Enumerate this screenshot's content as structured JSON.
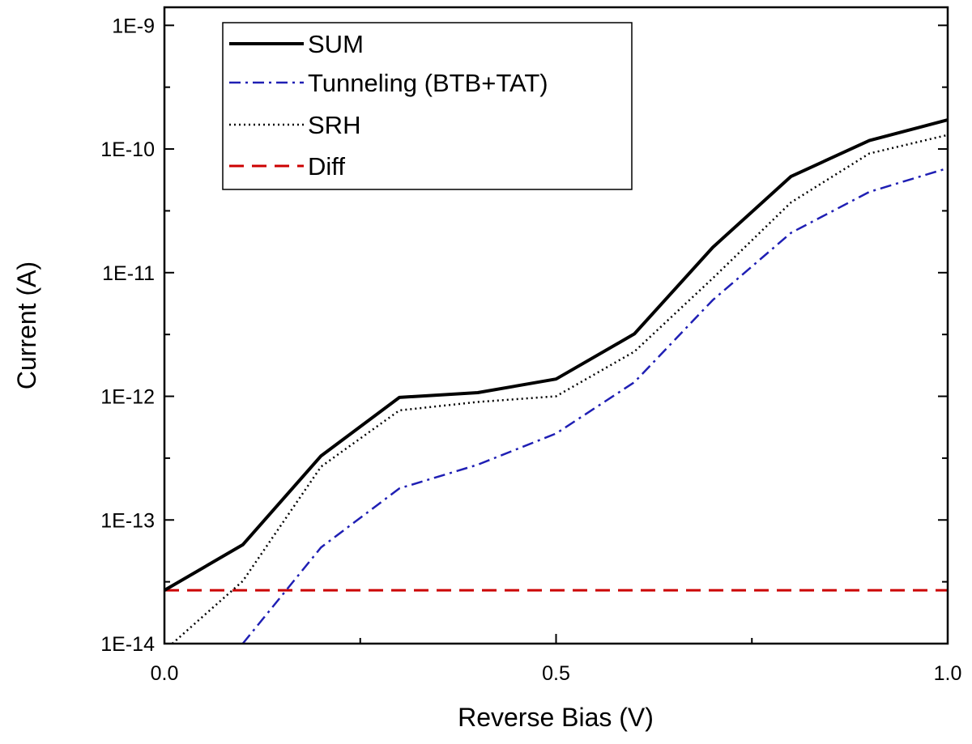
{
  "chart_data": {
    "type": "line",
    "xlabel": "Reverse Bias (V)",
    "ylabel": "Current (A)",
    "xlim": [
      0.0,
      1.0
    ],
    "ylim": [
      1e-14,
      1.4e-09
    ],
    "yscale": "log",
    "x_ticks": [
      0.0,
      0.5,
      1.0
    ],
    "x_tick_labels": [
      "0.0",
      "0.5",
      "1.0"
    ],
    "y_ticks": [
      1e-14,
      1e-13,
      1e-12,
      1e-11,
      1e-10,
      1e-09
    ],
    "y_tick_labels": [
      "1E-14",
      "1E-13",
      "1E-12",
      "1E-11",
      "1E-10",
      "1E-9"
    ],
    "grid": false,
    "legend_position": "top-left",
    "series": [
      {
        "name": "SUM",
        "color": "#000000",
        "line_style": "solid",
        "x": [
          0.0,
          0.1,
          0.2,
          0.3,
          0.4,
          0.5,
          0.6,
          0.7,
          0.8,
          0.9,
          1.0
        ],
        "y": [
          2.7e-14,
          6.3e-14,
          3.3e-13,
          9.8e-13,
          1.07e-12,
          1.38e-12,
          3.2e-12,
          1.6e-11,
          6e-11,
          1.17e-10,
          1.72e-10
        ]
      },
      {
        "name": "Tunneling (BTB+TAT)",
        "color": "#1f1fb4",
        "line_style": "dashdot",
        "x": [
          0.1,
          0.2,
          0.3,
          0.4,
          0.5,
          0.6,
          0.7,
          0.8,
          0.9,
          1.0
        ],
        "y": [
          1e-14,
          6e-14,
          1.8e-13,
          2.8e-13,
          5e-13,
          1.3e-12,
          6e-12,
          2.1e-11,
          4.5e-11,
          7e-11
        ]
      },
      {
        "name": "SRH",
        "color": "#000000",
        "line_style": "dotted",
        "x": [
          0.01,
          0.1,
          0.2,
          0.3,
          0.4,
          0.5,
          0.6,
          0.7,
          0.8,
          0.9,
          1.0
        ],
        "y": [
          1e-14,
          3.2e-14,
          2.7e-13,
          7.7e-13,
          9e-13,
          1e-12,
          2.3e-12,
          9e-12,
          3.7e-11,
          9.2e-11,
          1.3e-10
        ]
      },
      {
        "name": "Diff",
        "color": "#cc0000",
        "line_style": "dashed",
        "x": [
          0.0,
          1.0
        ],
        "y": [
          2.7e-14,
          2.7e-14
        ]
      }
    ]
  }
}
